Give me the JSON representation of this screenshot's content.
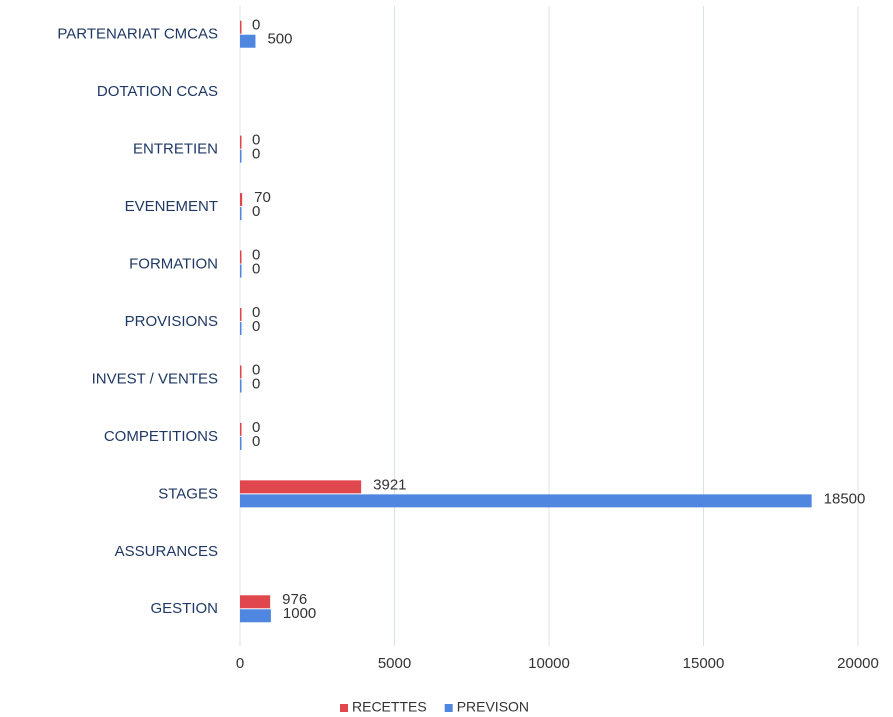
{
  "chart_data": {
    "type": "bar",
    "orientation": "horizontal",
    "categories": [
      "PARTENARIAT CMCAS",
      "DOTATION  CCAS",
      "ENTRETIEN",
      "EVENEMENT",
      "FORMATION",
      "PROVISIONS",
      "INVEST / VENTES",
      "COMPETITIONS",
      "STAGES",
      "ASSURANCES",
      "GESTION"
    ],
    "series": [
      {
        "name": "RECETTES",
        "color": "#e0474c",
        "values": [
          0,
          null,
          0,
          70,
          0,
          0,
          0,
          0,
          3921,
          null,
          976
        ]
      },
      {
        "name": "PREVISON",
        "color": "#4f86e0",
        "values": [
          500,
          null,
          0,
          0,
          0,
          0,
          0,
          0,
          18500,
          null,
          1000
        ]
      }
    ],
    "xlim": [
      0,
      20000
    ],
    "xticks": [
      0,
      5000,
      10000,
      15000,
      20000
    ],
    "grid": true,
    "legend": "bottom"
  }
}
